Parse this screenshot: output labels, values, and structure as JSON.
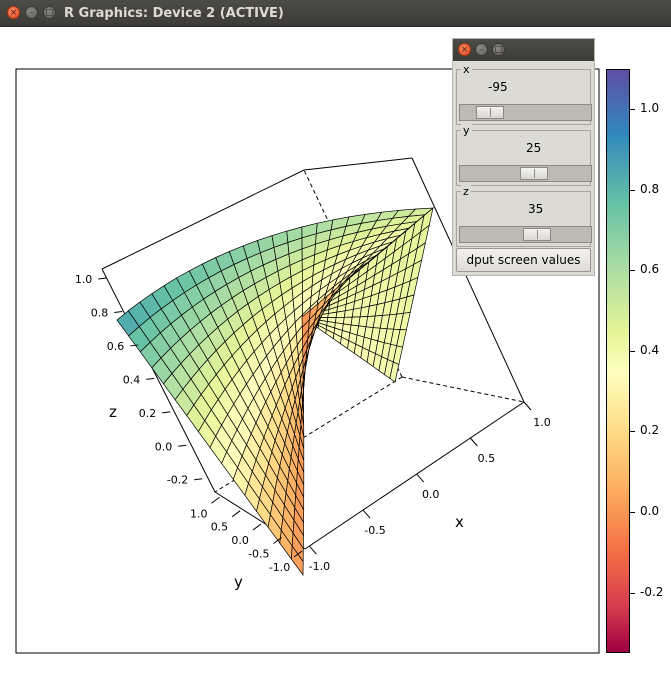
{
  "window": {
    "title": "R Graphics: Device 2 (ACTIVE)"
  },
  "controls": {
    "sliders": [
      {
        "label": "x",
        "value": "-95",
        "position": 0.15
      },
      {
        "label": "y",
        "value": "25",
        "position": 0.57
      },
      {
        "label": "z",
        "value": "35",
        "position": 0.6
      }
    ],
    "button_label": "dput screen values"
  },
  "axes": {
    "z_label": "z",
    "y_label": "y",
    "x_label": "x",
    "z_ticks": [
      "1.0",
      "0.8",
      "0.6",
      "0.4",
      "0.2",
      "0.0",
      "-0.2"
    ],
    "y_ticks": [
      "1.0",
      "0.5",
      "0.0",
      "-0.5",
      "-1.0"
    ],
    "x_ticks": [
      "-1.0",
      "-0.5",
      "0.0",
      "0.5",
      "1.0"
    ]
  },
  "colorbar": {
    "ticks": [
      "1.0",
      "0.8",
      "0.6",
      "0.4",
      "0.2",
      "0.0",
      "-0.2"
    ],
    "range": [
      -0.35,
      1.1
    ],
    "palette": [
      "#5e4fa2",
      "#3288bd",
      "#66c2a5",
      "#abdda4",
      "#e6f598",
      "#ffffbf",
      "#fee08b",
      "#fdae61",
      "#f46d43",
      "#d53e4f",
      "#9e0142"
    ]
  }
}
